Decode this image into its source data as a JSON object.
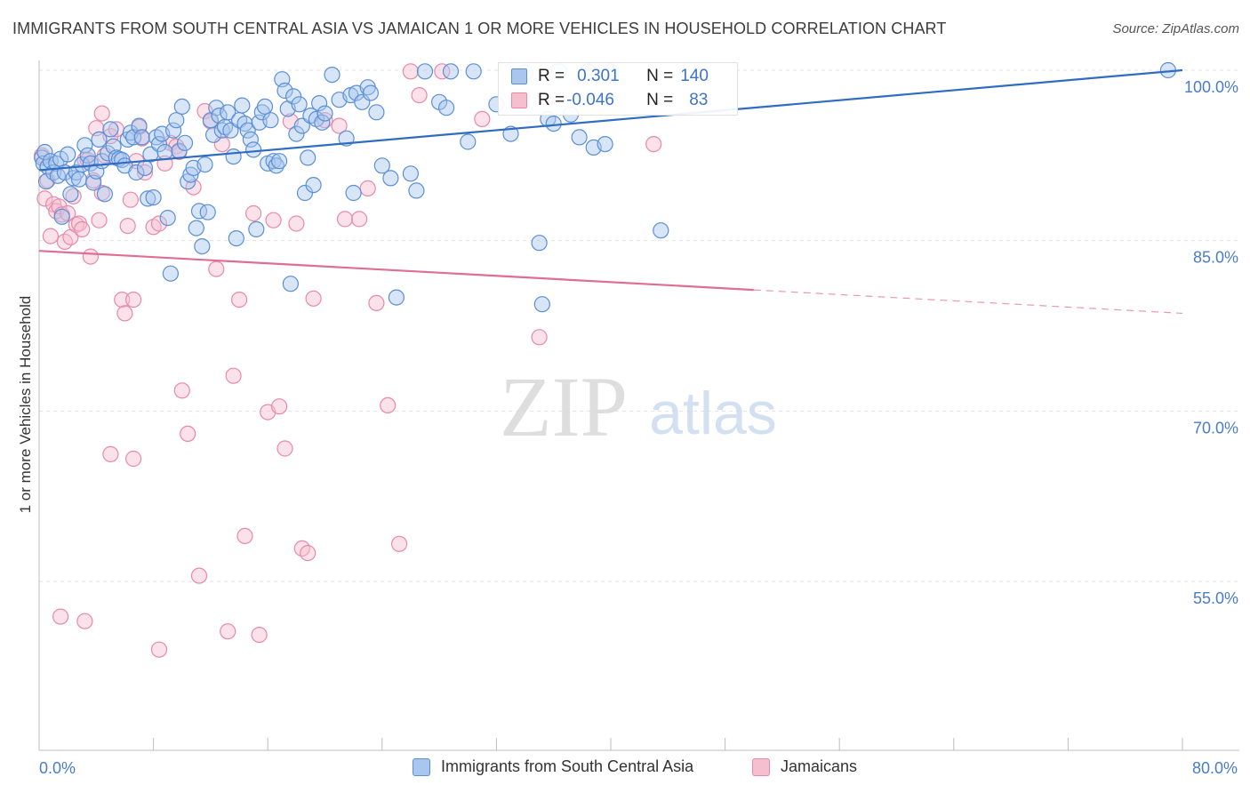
{
  "title": "IMMIGRANTS FROM SOUTH CENTRAL ASIA VS JAMAICAN 1 OR MORE VEHICLES IN HOUSEHOLD CORRELATION CHART",
  "source": "Source: ZipAtlas.com",
  "watermark": {
    "zip": "ZIP",
    "atlas": "atlas"
  },
  "colors": {
    "blue_fill": "#a9c6ee",
    "blue_stroke": "#5a8fd6",
    "blue_line": "#2f6dc3",
    "pink_fill": "#f6bfd0",
    "pink_stroke": "#e889a8",
    "pink_line": "#e06d93",
    "tick_text": "#4a7cc9",
    "grid": "#e3e3e3"
  },
  "stats": {
    "blue": {
      "r_label": "R = ",
      "r_value": "0.301",
      "n_label": "N = ",
      "n_value": "140"
    },
    "pink": {
      "r_label": "R = ",
      "r_value": "-0.046",
      "n_label": "N = ",
      "n_value": "83"
    }
  },
  "chart_data": {
    "type": "scatter",
    "title": "IMMIGRANTS FROM SOUTH CENTRAL ASIA VS JAMAICAN 1 OR MORE VEHICLES IN HOUSEHOLD CORRELATION CHART",
    "xlabel": "",
    "ylabel": "1 or more Vehicles in Household",
    "xlim": [
      0,
      80
    ],
    "ylim": [
      40,
      101.5
    ],
    "x_tick_labels": [
      "0.0%",
      "80.0%"
    ],
    "y_ticks": [
      55,
      70,
      85,
      100
    ],
    "y_tick_labels": [
      "55.0%",
      "70.0%",
      "85.0%",
      "100.0%"
    ],
    "grid": true,
    "legend_position": "bottom",
    "series": [
      {
        "name": "Immigrants from South Central Asia",
        "color": "#5a8fd6",
        "trend": {
          "x": [
            0,
            80
          ],
          "y": [
            91.2,
            100
          ],
          "x_solid_end": 80
        },
        "points": [
          [
            0.2,
            92.3
          ],
          [
            0.3,
            91.8
          ],
          [
            0.4,
            92.8
          ],
          [
            0.5,
            90.2
          ],
          [
            0.6,
            91.5
          ],
          [
            0.8,
            92.0
          ],
          [
            1.0,
            91.0
          ],
          [
            1.2,
            91.8
          ],
          [
            1.3,
            90.7
          ],
          [
            1.5,
            92.2
          ],
          [
            1.6,
            87.1
          ],
          [
            1.8,
            91.0
          ],
          [
            2.0,
            92.6
          ],
          [
            2.2,
            89.1
          ],
          [
            2.4,
            90.5
          ],
          [
            2.6,
            91.0
          ],
          [
            2.8,
            90.4
          ],
          [
            3.0,
            91.7
          ],
          [
            3.2,
            93.4
          ],
          [
            3.4,
            92.5
          ],
          [
            3.6,
            91.8
          ],
          [
            3.8,
            90.1
          ],
          [
            4.0,
            91.1
          ],
          [
            4.2,
            93.9
          ],
          [
            4.4,
            92.0
          ],
          [
            4.6,
            89.1
          ],
          [
            4.8,
            92.7
          ],
          [
            5.0,
            94.8
          ],
          [
            5.2,
            93.3
          ],
          [
            5.4,
            92.3
          ],
          [
            5.6,
            92.2
          ],
          [
            5.8,
            92.1
          ],
          [
            6.0,
            91.6
          ],
          [
            6.2,
            93.9
          ],
          [
            6.4,
            94.5
          ],
          [
            6.6,
            94.1
          ],
          [
            6.8,
            91.0
          ],
          [
            7.0,
            95.1
          ],
          [
            7.2,
            94.1
          ],
          [
            7.4,
            91.4
          ],
          [
            7.6,
            88.7
          ],
          [
            7.8,
            92.6
          ],
          [
            8.0,
            88.8
          ],
          [
            8.2,
            94.1
          ],
          [
            8.4,
            93.5
          ],
          [
            8.6,
            94.4
          ],
          [
            8.8,
            92.8
          ],
          [
            9.0,
            87.0
          ],
          [
            9.2,
            82.1
          ],
          [
            9.4,
            94.7
          ],
          [
            9.6,
            95.6
          ],
          [
            9.8,
            92.9
          ],
          [
            10.0,
            96.8
          ],
          [
            10.2,
            93.6
          ],
          [
            10.4,
            90.2
          ],
          [
            10.6,
            90.8
          ],
          [
            10.8,
            91.4
          ],
          [
            11.0,
            86.1
          ],
          [
            11.2,
            87.6
          ],
          [
            11.4,
            84.5
          ],
          [
            11.6,
            91.7
          ],
          [
            11.8,
            87.5
          ],
          [
            12.0,
            95.6
          ],
          [
            12.2,
            94.3
          ],
          [
            12.4,
            96.7
          ],
          [
            12.6,
            96.0
          ],
          [
            12.8,
            94.7
          ],
          [
            13.0,
            95.0
          ],
          [
            13.2,
            96.3
          ],
          [
            13.4,
            94.7
          ],
          [
            13.6,
            92.4
          ],
          [
            13.8,
            85.2
          ],
          [
            14.0,
            95.6
          ],
          [
            14.2,
            96.9
          ],
          [
            14.4,
            95.3
          ],
          [
            14.6,
            94.7
          ],
          [
            14.8,
            93.9
          ],
          [
            15.0,
            93.0
          ],
          [
            15.2,
            86.0
          ],
          [
            15.4,
            95.4
          ],
          [
            15.6,
            96.3
          ],
          [
            15.8,
            96.8
          ],
          [
            16.0,
            91.8
          ],
          [
            16.2,
            95.6
          ],
          [
            16.4,
            92.0
          ],
          [
            16.6,
            91.6
          ],
          [
            16.8,
            92.0
          ],
          [
            17.0,
            99.2
          ],
          [
            17.2,
            98.2
          ],
          [
            17.4,
            96.6
          ],
          [
            17.6,
            81.2
          ],
          [
            17.8,
            97.7
          ],
          [
            18.0,
            94.4
          ],
          [
            18.2,
            97.0
          ],
          [
            18.4,
            95.1
          ],
          [
            18.6,
            89.2
          ],
          [
            18.8,
            92.3
          ],
          [
            19.0,
            96.0
          ],
          [
            19.2,
            89.9
          ],
          [
            19.4,
            95.7
          ],
          [
            19.6,
            97.1
          ],
          [
            19.8,
            95.4
          ],
          [
            20.0,
            96.2
          ],
          [
            20.5,
            99.6
          ],
          [
            21.0,
            97.4
          ],
          [
            21.5,
            94.0
          ],
          [
            21.8,
            97.8
          ],
          [
            22.0,
            89.2
          ],
          [
            22.2,
            98.0
          ],
          [
            22.6,
            97.2
          ],
          [
            23.0,
            98.5
          ],
          [
            23.2,
            98.0
          ],
          [
            23.6,
            96.3
          ],
          [
            24.0,
            91.6
          ],
          [
            24.6,
            90.5
          ],
          [
            25.0,
            80.0
          ],
          [
            26.0,
            90.9
          ],
          [
            26.4,
            89.4
          ],
          [
            27.0,
            99.9
          ],
          [
            28.0,
            97.2
          ],
          [
            28.5,
            96.7
          ],
          [
            28.8,
            99.9
          ],
          [
            30.0,
            93.7
          ],
          [
            30.4,
            99.9
          ],
          [
            32.0,
            97.0
          ],
          [
            33.0,
            94.4
          ],
          [
            34.0,
            99.8
          ],
          [
            35.0,
            84.8
          ],
          [
            35.2,
            79.4
          ],
          [
            35.6,
            95.7
          ],
          [
            36.0,
            95.3
          ],
          [
            36.4,
            99.9
          ],
          [
            37.2,
            96.1
          ],
          [
            37.8,
            94.1
          ],
          [
            38.4,
            99.9
          ],
          [
            38.8,
            93.2
          ],
          [
            39.6,
            93.5
          ],
          [
            40.0,
            99.9
          ],
          [
            43.5,
            85.9
          ],
          [
            79.0,
            100.0
          ]
        ]
      },
      {
        "name": "Jamaicans",
        "color": "#e889a8",
        "trend": {
          "x": [
            0,
            80
          ],
          "y": [
            84.1,
            78.6
          ],
          "x_solid_end": 50
        },
        "points": [
          [
            0.2,
            92.5
          ],
          [
            0.4,
            88.7
          ],
          [
            0.6,
            90.3
          ],
          [
            0.8,
            85.4
          ],
          [
            1.0,
            88.2
          ],
          [
            1.2,
            87.6
          ],
          [
            1.4,
            88.0
          ],
          [
            1.6,
            87.3
          ],
          [
            1.8,
            84.9
          ],
          [
            2.0,
            87.4
          ],
          [
            2.2,
            85.3
          ],
          [
            2.4,
            88.9
          ],
          [
            2.6,
            86.4
          ],
          [
            2.8,
            86.5
          ],
          [
            3.0,
            86.0
          ],
          [
            3.2,
            92.1
          ],
          [
            3.4,
            92.1
          ],
          [
            3.6,
            83.6
          ],
          [
            3.8,
            90.3
          ],
          [
            4.0,
            94.9
          ],
          [
            4.2,
            86.8
          ],
          [
            4.4,
            89.2
          ],
          [
            4.6,
            92.5
          ],
          [
            5.0,
            94.2
          ],
          [
            5.4,
            94.8
          ],
          [
            5.8,
            79.8
          ],
          [
            6.0,
            78.6
          ],
          [
            6.2,
            86.3
          ],
          [
            6.4,
            88.6
          ],
          [
            6.6,
            79.8
          ],
          [
            6.8,
            92.0
          ],
          [
            7.0,
            95.0
          ],
          [
            7.2,
            94.0
          ],
          [
            7.4,
            91.0
          ],
          [
            8.0,
            86.2
          ],
          [
            8.4,
            86.5
          ],
          [
            8.8,
            91.8
          ],
          [
            9.2,
            93.6
          ],
          [
            9.6,
            93.3
          ],
          [
            10.0,
            71.8
          ],
          [
            10.4,
            68.0
          ],
          [
            10.8,
            89.7
          ],
          [
            11.2,
            55.5
          ],
          [
            11.6,
            96.4
          ],
          [
            12.0,
            95.5
          ],
          [
            12.4,
            82.5
          ],
          [
            12.8,
            93.5
          ],
          [
            13.2,
            50.6
          ],
          [
            13.6,
            73.1
          ],
          [
            14.0,
            79.8
          ],
          [
            14.4,
            59.0
          ],
          [
            15.0,
            87.4
          ],
          [
            15.4,
            50.3
          ],
          [
            16.0,
            69.9
          ],
          [
            16.4,
            86.8
          ],
          [
            16.8,
            70.4
          ],
          [
            17.2,
            66.7
          ],
          [
            17.6,
            95.5
          ],
          [
            18.0,
            86.5
          ],
          [
            18.4,
            57.9
          ],
          [
            18.8,
            57.5
          ],
          [
            19.2,
            79.9
          ],
          [
            20.0,
            95.6
          ],
          [
            21.0,
            95.1
          ],
          [
            21.4,
            86.9
          ],
          [
            22.4,
            86.9
          ],
          [
            23.0,
            89.6
          ],
          [
            23.6,
            79.5
          ],
          [
            24.4,
            70.5
          ],
          [
            25.2,
            58.3
          ],
          [
            26.0,
            99.9
          ],
          [
            26.6,
            97.8
          ],
          [
            28.2,
            99.9
          ],
          [
            31.0,
            95.7
          ],
          [
            35.0,
            76.5
          ],
          [
            43.0,
            93.5
          ],
          [
            1.5,
            51.9
          ],
          [
            3.2,
            51.5
          ],
          [
            4.4,
            96.2
          ],
          [
            5.0,
            66.2
          ],
          [
            6.6,
            65.8
          ],
          [
            8.4,
            49.0
          ],
          [
            9.8,
            92.8
          ]
        ]
      }
    ]
  }
}
